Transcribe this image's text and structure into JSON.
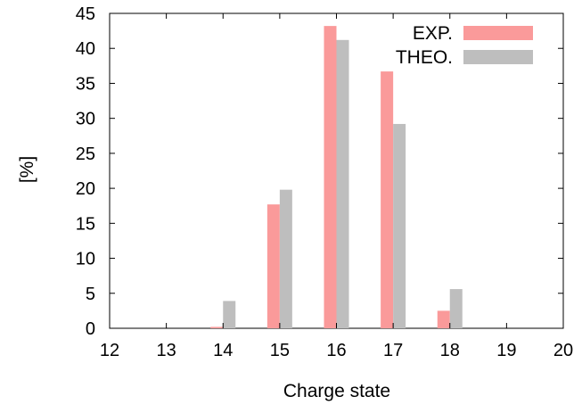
{
  "chart_data": {
    "type": "bar",
    "xlabel": "Charge state",
    "ylabel": "[%]",
    "xlim": [
      12,
      20
    ],
    "ylim": [
      0,
      45
    ],
    "xticks": [
      "12",
      "13",
      "14",
      "15",
      "16",
      "17",
      "18",
      "19",
      "20"
    ],
    "yticks": [
      "0",
      "5",
      "10",
      "15",
      "20",
      "25",
      "30",
      "35",
      "40",
      "45"
    ],
    "categories": [
      14,
      15,
      16,
      17,
      18
    ],
    "series": [
      {
        "name": "EXP.",
        "color": "#fa9a9a",
        "values": [
          0.2,
          17.7,
          43.2,
          36.7,
          2.5
        ]
      },
      {
        "name": "THEO.",
        "color": "#bebebe",
        "values": [
          3.9,
          19.8,
          41.2,
          29.2,
          5.6
        ]
      }
    ],
    "grid": false,
    "legend_position": "top-right"
  }
}
